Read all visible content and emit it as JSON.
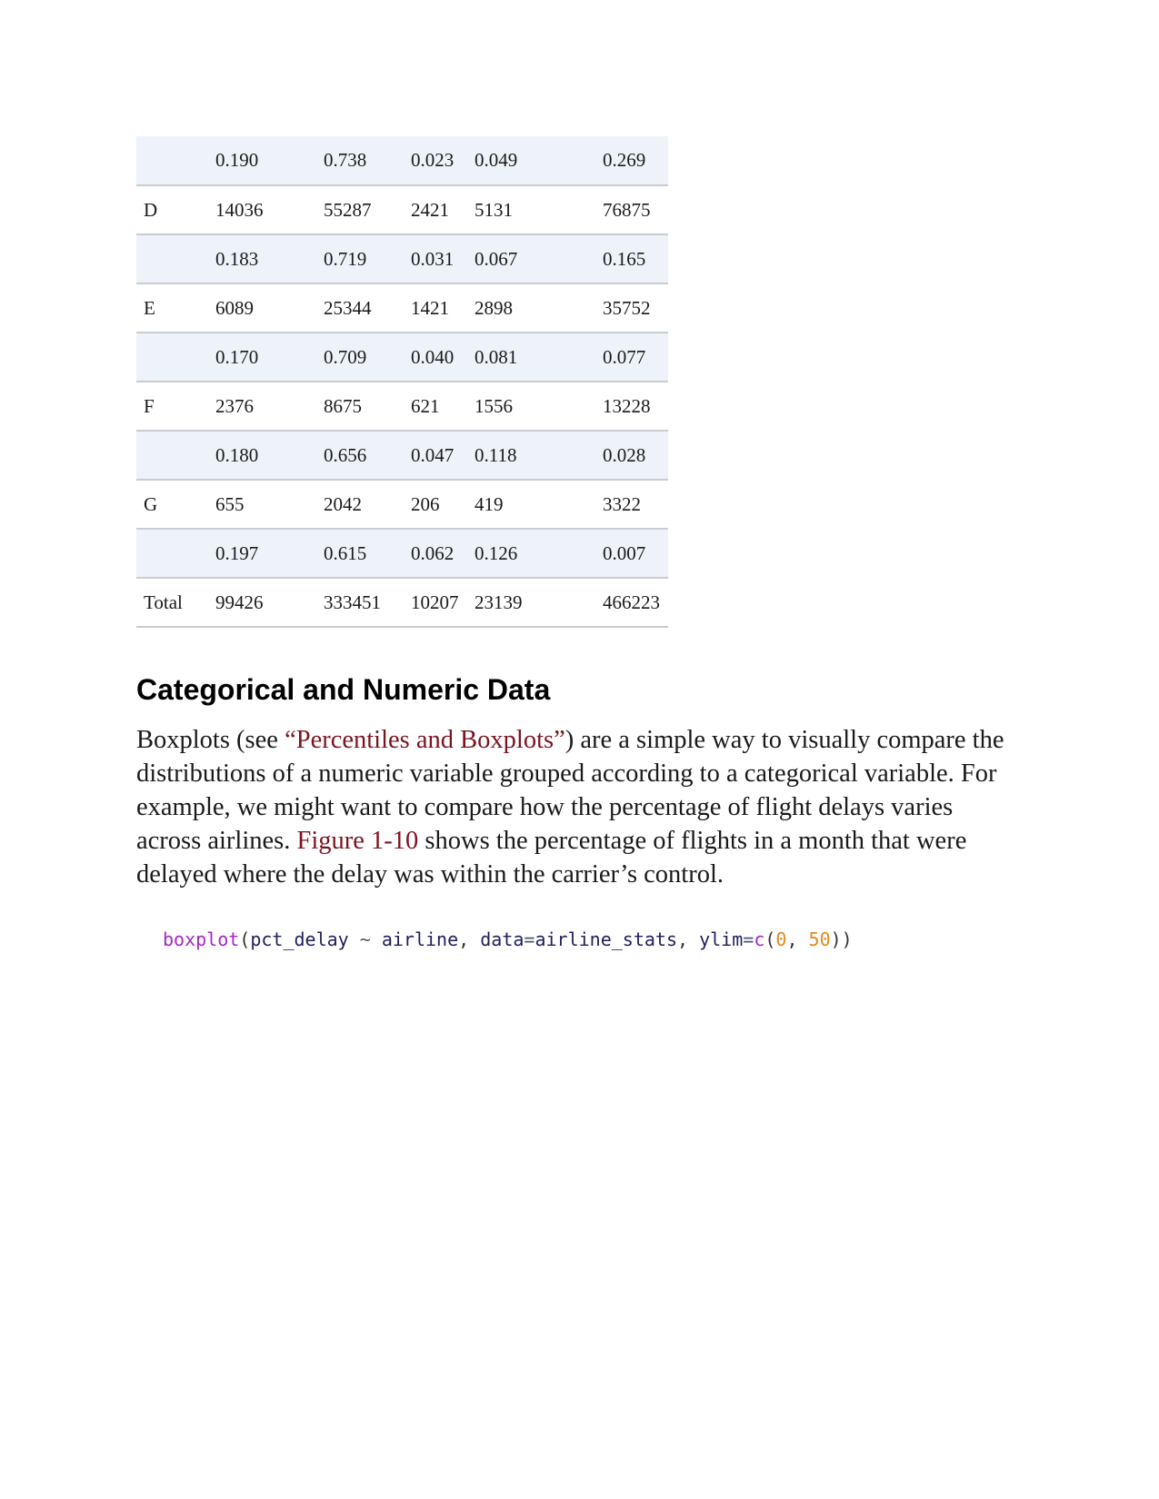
{
  "table": {
    "rows": [
      {
        "label": "",
        "cells": [
          "0.190",
          "0.738",
          "0.023",
          "0.049",
          "0.269"
        ],
        "shaded": true
      },
      {
        "label": "D",
        "cells": [
          "14036",
          "55287",
          "2421",
          "5131",
          "76875"
        ],
        "shaded": false
      },
      {
        "label": "",
        "cells": [
          "0.183",
          "0.719",
          "0.031",
          "0.067",
          "0.165"
        ],
        "shaded": true
      },
      {
        "label": "E",
        "cells": [
          "6089",
          "25344",
          "1421",
          "2898",
          "35752"
        ],
        "shaded": false
      },
      {
        "label": "",
        "cells": [
          "0.170",
          "0.709",
          "0.040",
          "0.081",
          "0.077"
        ],
        "shaded": true
      },
      {
        "label": "F",
        "cells": [
          "2376",
          "8675",
          "621",
          "1556",
          "13228"
        ],
        "shaded": false
      },
      {
        "label": "",
        "cells": [
          "0.180",
          "0.656",
          "0.047",
          "0.118",
          "0.028"
        ],
        "shaded": true
      },
      {
        "label": "G",
        "cells": [
          "655",
          "2042",
          "206",
          "419",
          "3322"
        ],
        "shaded": false
      },
      {
        "label": "",
        "cells": [
          "0.197",
          "0.615",
          "0.062",
          "0.126",
          "0.007"
        ],
        "shaded": true
      },
      {
        "label": "Total",
        "cells": [
          "99426",
          "333451",
          "10207",
          "23139",
          "466223"
        ],
        "shaded": false
      }
    ]
  },
  "section": {
    "heading": "Categorical and Numeric Data",
    "paragraph": {
      "part1": "Boxplots (see ",
      "link1": "“Percentiles and Boxplots”",
      "part2": ") are a simple way to visually compare the distributions of a numeric variable grouped according to a categorical variable. For example, we might want to compare how the percentage of flight delays varies across airlines. ",
      "link2": "Figure 1-10",
      "part3": " shows the percentage of flights in a month that were delayed where the delay was within the carrier’s control."
    }
  },
  "code": {
    "fn": "boxplot",
    "open_paren": "(",
    "arg1": "pct_delay",
    "tilde": " ~ ",
    "arg2": "airline",
    "comma1": ", ",
    "param1": "data",
    "eq1": "=",
    "value1": "airline_stats",
    "comma2": ", ",
    "param2": "ylim",
    "eq2": "=",
    "fn2": "c",
    "open_paren2": "(",
    "num1": "0",
    "comma3": ", ",
    "num2": "50",
    "close_parens": "))"
  },
  "colors": {
    "link": "#7a1420",
    "row_shade": "#eef3f9",
    "rule": "#c9ccd0",
    "code_function": "#a626c4",
    "code_number": "#e08a1e",
    "code_identifier": "#1f1f5c"
  }
}
